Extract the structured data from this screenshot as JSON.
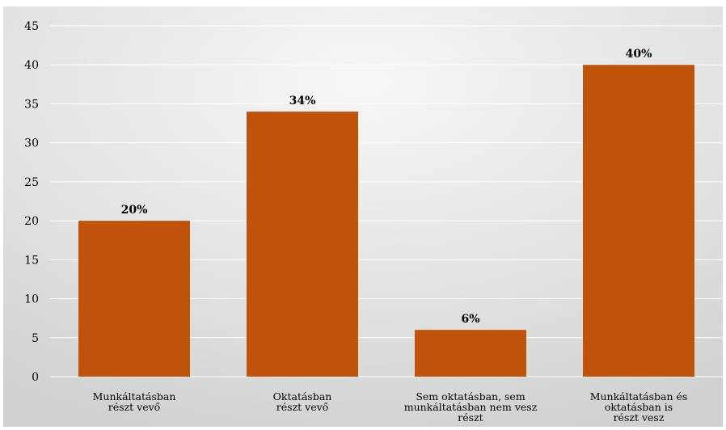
{
  "chart_data": {
    "type": "bar",
    "categories": [
      [
        "Munkáltatásban",
        "részt vevő"
      ],
      [
        "Oktatásban",
        "részt vevő"
      ],
      [
        "Sem oktatásban, sem",
        "munkáltatásban nem vesz",
        "részt"
      ],
      [
        "Munkáltatásban és",
        "oktatásban is",
        "részt vesz"
      ]
    ],
    "values": [
      20,
      34,
      6,
      40
    ],
    "data_labels": [
      "20%",
      "34%",
      "6%",
      "40%"
    ],
    "yticks": [
      "0",
      "5",
      "10",
      "15",
      "20",
      "25",
      "30",
      "35",
      "40",
      "45"
    ],
    "ylim": [
      0,
      45
    ],
    "grid": true,
    "colors": {
      "bar": "#C0530C",
      "grid": "#ffffff",
      "text": "#000000"
    }
  }
}
